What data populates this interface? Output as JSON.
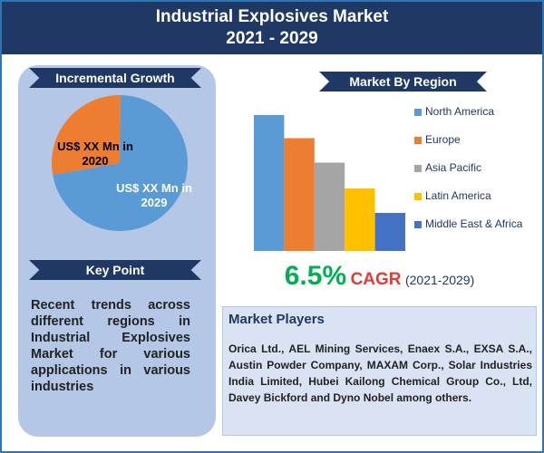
{
  "header": {
    "title": "Industrial Explosives Market",
    "subtitle": "2021 - 2029"
  },
  "chart_data": [
    {
      "type": "pie",
      "title": "Incremental Growth",
      "categories": [
        "US$ XX Mn in 2020",
        "US$ XX Mn in 2029"
      ],
      "values": [
        28,
        72
      ],
      "colors": [
        "#ed7d31",
        "#5b9bd5"
      ]
    },
    {
      "type": "bar",
      "title": "Market By Region",
      "categories": [
        "North America",
        "Europe",
        "Asia Pacific",
        "Latin America",
        "Middle East & Africa"
      ],
      "values": [
        100,
        83,
        65,
        46,
        28
      ],
      "colors": [
        "#5b9bd5",
        "#ed7d31",
        "#a5a5a5",
        "#ffc000",
        "#4472c4"
      ],
      "ylim": [
        0,
        100
      ],
      "legend": "right"
    }
  ],
  "cagr": {
    "value": "6.5%",
    "label": "CAGR",
    "period": "(2021-2029)"
  },
  "key_point": {
    "title": "Key Point",
    "text": "Recent trends across different regions in Industrial Explosives Market for various applications in various industries"
  },
  "market_players": {
    "title": "Market Players",
    "text": "Orica Ltd., AEL Mining Services, Enaex S.A., EXSA S.A., Austin Powder Company, MAXAM Corp., Solar Industries India Limited, Hubei Kailong Chemical Group Co., Ltd, Davey Bickford and Dyno Nobel among others."
  }
}
